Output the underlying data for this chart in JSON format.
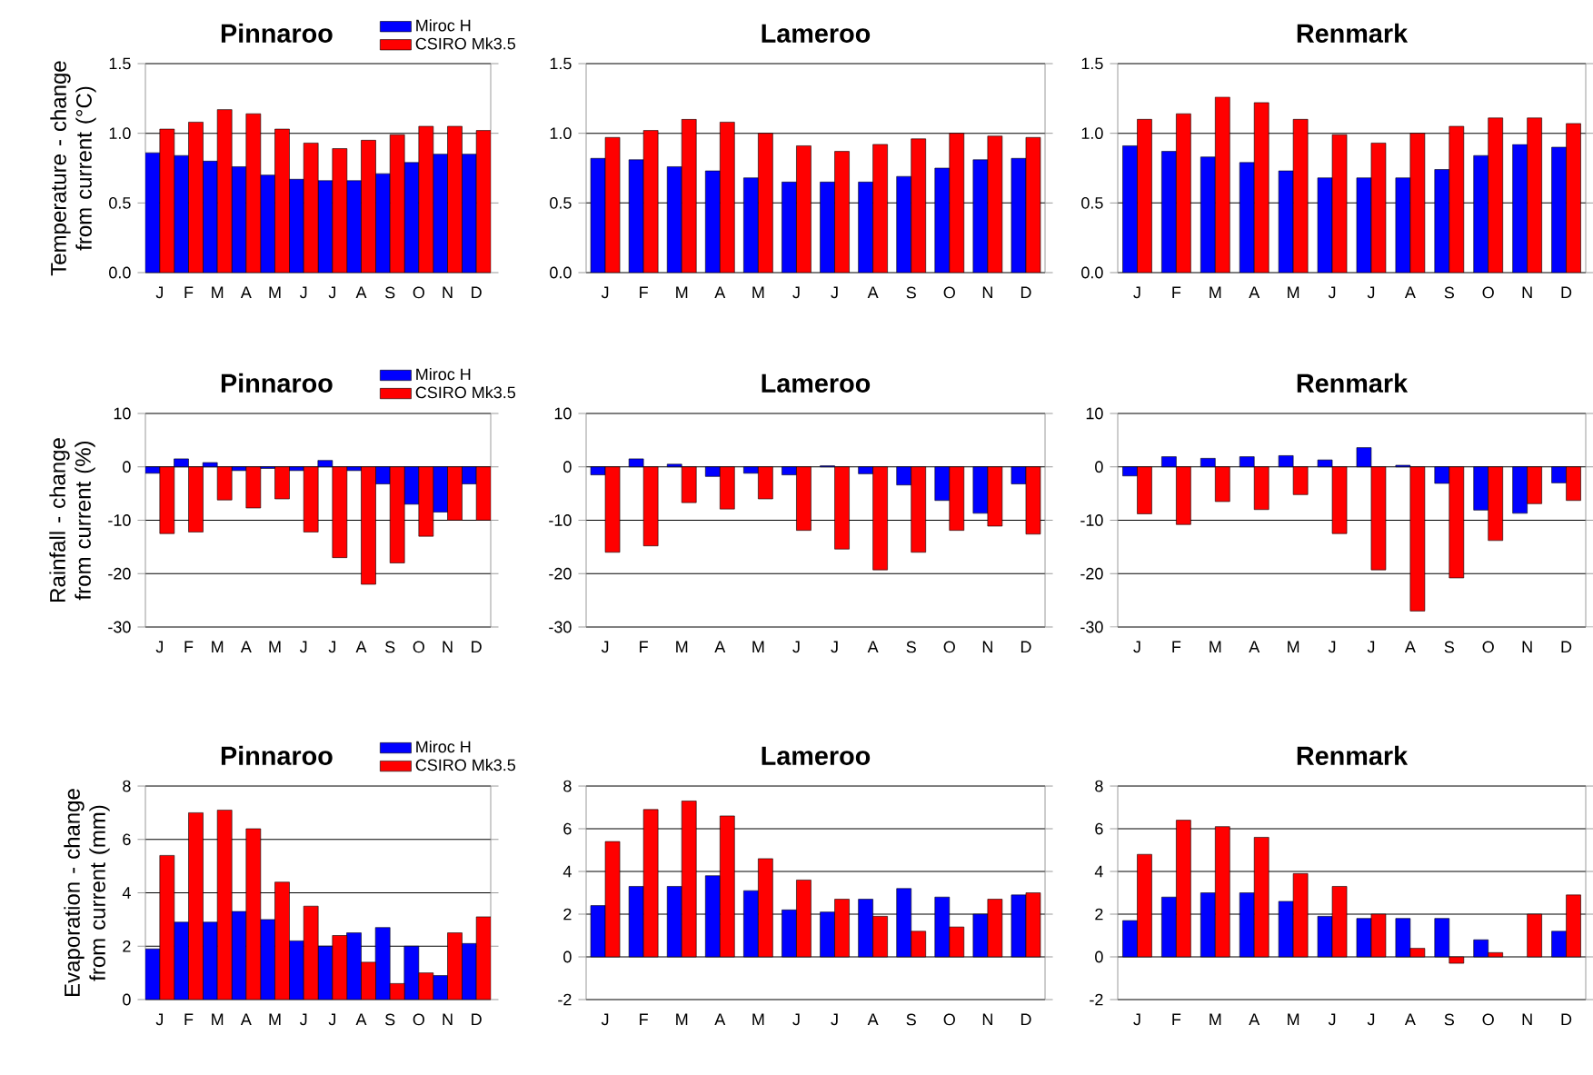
{
  "chart_data": [
    {
      "type": "bar",
      "title": "Pinnaroo",
      "ylabel": "Temperature - change from current (°C)",
      "categories": [
        "J",
        "F",
        "M",
        "A",
        "M",
        "J",
        "J",
        "A",
        "S",
        "O",
        "N",
        "D"
      ],
      "grid": "y",
      "legend": "top right",
      "ylim": [
        0,
        1.5
      ],
      "yticks": [
        {
          "value": 0,
          "label": "0.0"
        },
        {
          "value": 0.5,
          "label": "0.5"
        },
        {
          "value": 1.0,
          "label": "1.0"
        },
        {
          "value": 1.5,
          "label": "1.5"
        }
      ],
      "series": [
        {
          "name": "Miroc H",
          "color": "#0000ff",
          "values": [
            0.86,
            0.84,
            0.8,
            0.76,
            0.7,
            0.67,
            0.66,
            0.66,
            0.71,
            0.79,
            0.85,
            0.85
          ]
        },
        {
          "name": "CSIRO Mk3.5",
          "color": "#ff0000",
          "values": [
            1.03,
            1.08,
            1.17,
            1.14,
            1.03,
            0.93,
            0.89,
            0.95,
            0.99,
            1.05,
            1.05,
            1.02
          ]
        }
      ]
    },
    {
      "type": "bar",
      "title": "Lameroo",
      "categories": [
        "J",
        "F",
        "M",
        "A",
        "M",
        "J",
        "J",
        "A",
        "S",
        "O",
        "N",
        "D"
      ],
      "grid": "y",
      "ylim": [
        0,
        1.5
      ],
      "yticks": [
        {
          "value": 0,
          "label": "0.0"
        },
        {
          "value": 0.5,
          "label": "0.5"
        },
        {
          "value": 1.0,
          "label": "1.0"
        },
        {
          "value": 1.5,
          "label": "1.5"
        }
      ],
      "series": [
        {
          "color": "#0000ff",
          "values": [
            0.82,
            0.81,
            0.76,
            0.73,
            0.68,
            0.65,
            0.65,
            0.65,
            0.69,
            0.75,
            0.81,
            0.82
          ]
        },
        {
          "color": "#ff0000",
          "values": [
            0.97,
            1.02,
            1.1,
            1.08,
            1.0,
            0.91,
            0.87,
            0.92,
            0.96,
            1.0,
            0.98,
            0.97
          ]
        }
      ]
    },
    {
      "type": "bar",
      "title": "Renmark",
      "categories": [
        "J",
        "F",
        "M",
        "A",
        "M",
        "J",
        "J",
        "A",
        "S",
        "O",
        "N",
        "D"
      ],
      "grid": "y",
      "ylim": [
        0,
        1.5
      ],
      "yticks": [
        {
          "value": 0,
          "label": "0.0"
        },
        {
          "value": 0.5,
          "label": "0.5"
        },
        {
          "value": 1.0,
          "label": "1.0"
        },
        {
          "value": 1.5,
          "label": "1.5"
        }
      ],
      "series": [
        {
          "color": "#0000ff",
          "values": [
            0.91,
            0.87,
            0.83,
            0.79,
            0.73,
            0.68,
            0.68,
            0.68,
            0.74,
            0.84,
            0.92,
            0.9
          ]
        },
        {
          "color": "#ff0000",
          "values": [
            1.1,
            1.14,
            1.26,
            1.22,
            1.1,
            0.99,
            0.93,
            1.0,
            1.05,
            1.11,
            1.11,
            1.07
          ]
        }
      ]
    },
    {
      "type": "bar",
      "title": "Pinnaroo",
      "ylabel": "Rainfall - change from current (%)",
      "categories": [
        "J",
        "F",
        "M",
        "A",
        "M",
        "J",
        "J",
        "A",
        "S",
        "O",
        "N",
        "D"
      ],
      "grid": "y",
      "legend": "top right",
      "ylim": [
        -30,
        10
      ],
      "yticks": [
        -30,
        -20,
        -10,
        0,
        10
      ],
      "series": [
        {
          "name": "Miroc H",
          "color": "#0000ff",
          "values": [
            -1.2,
            1.5,
            0.8,
            -0.7,
            -0.3,
            -0.7,
            1.2,
            -0.7,
            -3.2,
            -7,
            -8.5,
            -3.2
          ]
        },
        {
          "name": "CSIRO Mk3.5",
          "color": "#ff0000",
          "values": [
            -12.5,
            -12.2,
            -6.2,
            -7.7,
            -6,
            -12.2,
            -17,
            -22,
            -18,
            -13,
            -10,
            -10
          ]
        }
      ]
    },
    {
      "type": "bar",
      "title": "Lameroo",
      "categories": [
        "J",
        "F",
        "M",
        "A",
        "M",
        "J",
        "J",
        "A",
        "S",
        "O",
        "N",
        "D"
      ],
      "grid": "y",
      "ylim": [
        -30,
        10
      ],
      "yticks": [
        -30,
        -20,
        -10,
        0,
        10
      ],
      "series": [
        {
          "color": "#0000ff",
          "values": [
            -1.5,
            1.5,
            0.5,
            -1.8,
            -1.2,
            -1.5,
            0.2,
            -1.3,
            -3.4,
            -6.3,
            -8.7,
            -3.2
          ]
        },
        {
          "color": "#ff0000",
          "values": [
            -16,
            -14.8,
            -6.7,
            -7.9,
            -6,
            -11.9,
            -15.4,
            -19.3,
            -16,
            -11.9,
            -11.1,
            -12.6
          ]
        }
      ]
    },
    {
      "type": "bar",
      "title": "Renmark",
      "categories": [
        "J",
        "F",
        "M",
        "A",
        "M",
        "J",
        "J",
        "A",
        "S",
        "O",
        "N",
        "D"
      ],
      "grid": "y",
      "ylim": [
        -30,
        10
      ],
      "yticks": [
        -30,
        -20,
        -10,
        0,
        10
      ],
      "series": [
        {
          "color": "#0000ff",
          "values": [
            -1.7,
            1.9,
            1.6,
            1.9,
            2.1,
            1.3,
            3.6,
            0.3,
            -3.1,
            -8.1,
            -8.7,
            -3.0
          ]
        },
        {
          "color": "#ff0000",
          "values": [
            -8.8,
            -10.8,
            -6.5,
            -8,
            -5.2,
            -12.5,
            -19.3,
            -27,
            -20.8,
            -13.8,
            -6.9,
            -6.3
          ]
        }
      ]
    },
    {
      "type": "bar",
      "title": "Pinnaroo",
      "ylabel": "Evaporation - change from current (mm)",
      "categories": [
        "J",
        "F",
        "M",
        "A",
        "M",
        "J",
        "J",
        "A",
        "S",
        "O",
        "N",
        "D"
      ],
      "grid": "y",
      "legend": "top right",
      "ylim": [
        0,
        8
      ],
      "yticks": [
        0,
        2,
        4,
        6,
        8
      ],
      "series": [
        {
          "name": "Miroc H",
          "color": "#0000ff",
          "values": [
            1.9,
            2.9,
            2.9,
            3.3,
            3.0,
            2.2,
            2.0,
            2.5,
            2.7,
            2.0,
            0.9,
            2.1
          ]
        },
        {
          "name": "CSIRO Mk3.5",
          "color": "#ff0000",
          "values": [
            5.4,
            7.0,
            7.1,
            6.4,
            4.4,
            3.5,
            2.4,
            1.4,
            0.6,
            1.0,
            2.5,
            3.1
          ]
        }
      ]
    },
    {
      "type": "bar",
      "title": "Lameroo",
      "categories": [
        "J",
        "F",
        "M",
        "A",
        "M",
        "J",
        "J",
        "A",
        "S",
        "O",
        "N",
        "D"
      ],
      "grid": "y",
      "ylim": [
        -2,
        8
      ],
      "yticks": [
        -2,
        0,
        2,
        4,
        6,
        8
      ],
      "series": [
        {
          "color": "#0000ff",
          "values": [
            2.4,
            3.3,
            3.3,
            3.8,
            3.1,
            2.2,
            2.1,
            2.7,
            3.2,
            2.8,
            2.0,
            2.9
          ]
        },
        {
          "color": "#ff0000",
          "values": [
            5.4,
            6.9,
            7.3,
            6.6,
            4.6,
            3.6,
            2.7,
            1.9,
            1.2,
            1.4,
            2.7,
            3.0
          ]
        }
      ]
    },
    {
      "type": "bar",
      "title": "Renmark",
      "categories": [
        "J",
        "F",
        "M",
        "A",
        "M",
        "J",
        "J",
        "A",
        "S",
        "O",
        "N",
        "D"
      ],
      "grid": "y",
      "ylim": [
        -2,
        8
      ],
      "yticks": [
        -2,
        0,
        2,
        4,
        6,
        8
      ],
      "series": [
        {
          "color": "#0000ff",
          "values": [
            1.7,
            2.8,
            3.0,
            3.0,
            2.6,
            1.9,
            1.8,
            1.8,
            1.8,
            0.8,
            null,
            1.2
          ]
        },
        {
          "color": "#ff0000",
          "values": [
            4.8,
            6.4,
            6.1,
            5.6,
            3.9,
            3.3,
            2.0,
            0.4,
            -0.3,
            0.2,
            2.0,
            2.9
          ]
        }
      ]
    }
  ]
}
